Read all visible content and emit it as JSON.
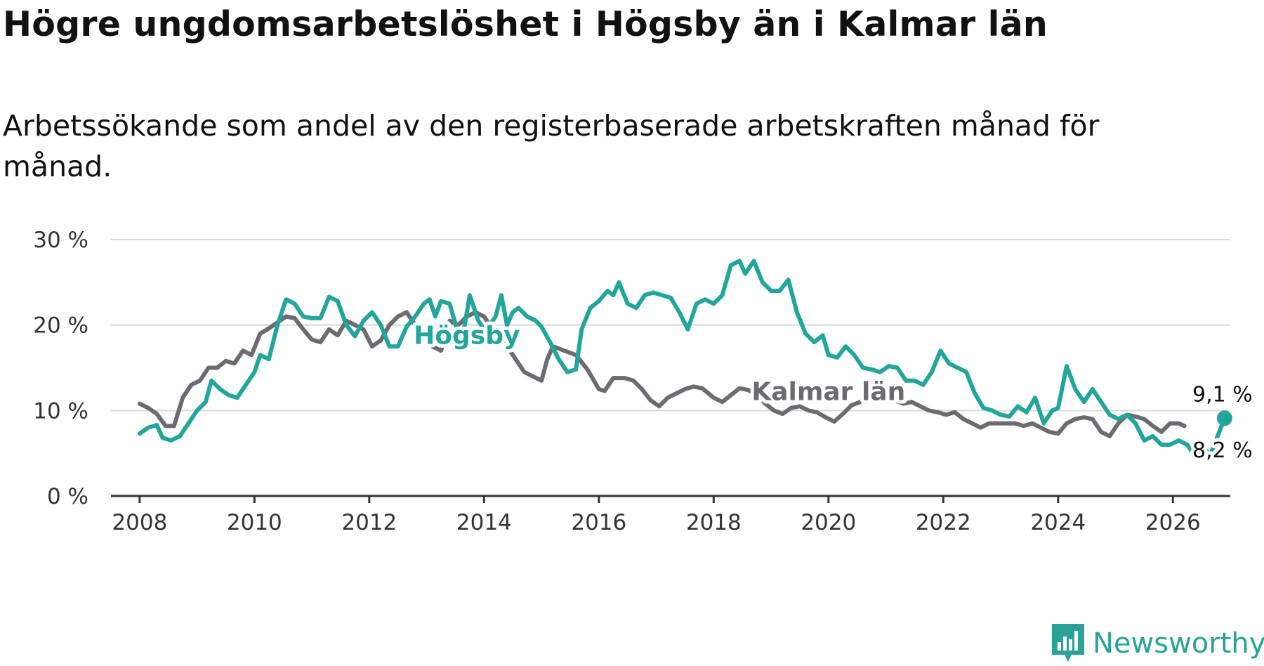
{
  "title": "Högre ungdomsarbetslöshet i Högsby än i Kalmar län",
  "subtitle": "Arbetssökande som andel av den registerbaserade arbetskraften månad för månad.",
  "brand": {
    "name": "Newsworthy",
    "icon": "bar-chart-chat-icon",
    "color": "#2aa298"
  },
  "chart_data": {
    "type": "line",
    "title": "Högre ungdomsarbetslöshet i Högsby än i Kalmar län",
    "xlabel": "",
    "ylabel": "",
    "xlim": [
      2007.5,
      2027.0
    ],
    "ylim": [
      0,
      30
    ],
    "y_ticks": [
      0,
      10,
      20,
      30
    ],
    "y_tick_labels": [
      "0 %",
      "10 %",
      "20 %",
      "30 %"
    ],
    "x_ticks": [
      2008,
      2010,
      2012,
      2014,
      2016,
      2018,
      2020,
      2022,
      2024,
      2026
    ],
    "x_tick_labels": [
      "2008",
      "2010",
      "2012",
      "2014",
      "2016",
      "2018",
      "2020",
      "2022",
      "2024",
      "2026"
    ],
    "grid": true,
    "series": [
      {
        "name": "Kalmar län",
        "color": "#6d6b72",
        "label": "Kalmar län",
        "end_label": "8,2 %",
        "points": [
          [
            2008.0,
            10.8
          ],
          [
            2008.15,
            10.3
          ],
          [
            2008.3,
            9.6
          ],
          [
            2008.45,
            8.2
          ],
          [
            2008.6,
            8.2
          ],
          [
            2008.75,
            11.5
          ],
          [
            2008.9,
            13.0
          ],
          [
            2009.05,
            13.5
          ],
          [
            2009.2,
            15.0
          ],
          [
            2009.35,
            15.0
          ],
          [
            2009.5,
            15.8
          ],
          [
            2009.65,
            15.5
          ],
          [
            2009.8,
            17.0
          ],
          [
            2009.95,
            16.5
          ],
          [
            2010.1,
            19.0
          ],
          [
            2010.25,
            19.6
          ],
          [
            2010.4,
            20.3
          ],
          [
            2010.55,
            21.0
          ],
          [
            2010.7,
            20.8
          ],
          [
            2010.85,
            19.5
          ],
          [
            2011.0,
            18.3
          ],
          [
            2011.15,
            18.0
          ],
          [
            2011.3,
            19.5
          ],
          [
            2011.45,
            18.8
          ],
          [
            2011.6,
            20.5
          ],
          [
            2011.75,
            20.0
          ],
          [
            2011.9,
            19.5
          ],
          [
            2012.05,
            17.5
          ],
          [
            2012.2,
            18.2
          ],
          [
            2012.35,
            20.0
          ],
          [
            2012.5,
            21.0
          ],
          [
            2012.65,
            21.5
          ],
          [
            2012.8,
            20.0
          ],
          [
            2012.95,
            19.5
          ],
          [
            2013.1,
            17.5
          ],
          [
            2013.25,
            17.0
          ],
          [
            2013.4,
            20.5
          ],
          [
            2013.55,
            20.0
          ],
          [
            2013.7,
            21.0
          ],
          [
            2013.85,
            21.5
          ],
          [
            2014.0,
            21.0
          ],
          [
            2014.1,
            20.0
          ],
          [
            2014.25,
            18.5
          ],
          [
            2014.4,
            17.5
          ],
          [
            2014.55,
            16.0
          ],
          [
            2014.7,
            14.5
          ],
          [
            2014.85,
            14.0
          ],
          [
            2015.0,
            13.5
          ],
          [
            2015.1,
            16.0
          ],
          [
            2015.2,
            17.5
          ],
          [
            2015.4,
            17.0
          ],
          [
            2015.6,
            16.5
          ],
          [
            2015.8,
            14.8
          ],
          [
            2016.0,
            12.5
          ],
          [
            2016.1,
            12.3
          ],
          [
            2016.25,
            13.8
          ],
          [
            2016.45,
            13.8
          ],
          [
            2016.6,
            13.5
          ],
          [
            2016.75,
            12.5
          ],
          [
            2016.9,
            11.2
          ],
          [
            2017.05,
            10.5
          ],
          [
            2017.2,
            11.5
          ],
          [
            2017.35,
            12.0
          ],
          [
            2017.5,
            12.5
          ],
          [
            2017.65,
            12.8
          ],
          [
            2017.8,
            12.6
          ],
          [
            2018.0,
            11.5
          ],
          [
            2018.15,
            11.0
          ],
          [
            2018.3,
            11.8
          ],
          [
            2018.45,
            12.6
          ],
          [
            2018.6,
            12.4
          ],
          [
            2018.75,
            11.8
          ],
          [
            2018.9,
            10.8
          ],
          [
            2019.05,
            10.0
          ],
          [
            2019.2,
            9.6
          ],
          [
            2019.35,
            10.3
          ],
          [
            2019.5,
            10.5
          ],
          [
            2019.65,
            10.0
          ],
          [
            2019.8,
            9.8
          ],
          [
            2019.95,
            9.2
          ],
          [
            2020.1,
            8.7
          ],
          [
            2020.25,
            9.6
          ],
          [
            2020.4,
            10.6
          ],
          [
            2020.55,
            11.0
          ],
          [
            2020.7,
            11.5
          ],
          [
            2020.85,
            11.2
          ],
          [
            2021.0,
            11.5
          ],
          [
            2021.15,
            11.2
          ],
          [
            2021.3,
            10.8
          ],
          [
            2021.45,
            11.0
          ],
          [
            2021.6,
            10.5
          ],
          [
            2021.75,
            10.0
          ],
          [
            2021.9,
            9.8
          ],
          [
            2022.05,
            9.5
          ],
          [
            2022.2,
            9.8
          ],
          [
            2022.35,
            9.0
          ],
          [
            2022.5,
            8.5
          ],
          [
            2022.65,
            8.0
          ],
          [
            2022.8,
            8.5
          ],
          [
            2022.95,
            8.5
          ],
          [
            2023.1,
            8.5
          ],
          [
            2023.25,
            8.5
          ],
          [
            2023.4,
            8.2
          ],
          [
            2023.55,
            8.5
          ],
          [
            2023.7,
            8.0
          ],
          [
            2023.85,
            7.5
          ],
          [
            2024.0,
            7.3
          ],
          [
            2024.15,
            8.5
          ],
          [
            2024.3,
            9.0
          ],
          [
            2024.45,
            9.2
          ],
          [
            2024.6,
            9.0
          ],
          [
            2024.75,
            7.5
          ],
          [
            2024.9,
            7.0
          ],
          [
            2025.05,
            8.5
          ],
          [
            2025.2,
            9.5
          ],
          [
            2025.35,
            9.3
          ],
          [
            2025.5,
            9.0
          ],
          [
            2025.65,
            8.2
          ],
          [
            2025.8,
            7.5
          ],
          [
            2025.95,
            8.5
          ],
          [
            2026.1,
            8.5
          ],
          [
            2026.2,
            8.2
          ]
        ]
      },
      {
        "name": "Högsby",
        "color": "#22a59a",
        "label": "Högsby",
        "end_label": "9,1 %",
        "points": [
          [
            2008.0,
            7.3
          ],
          [
            2008.15,
            8.0
          ],
          [
            2008.3,
            8.3
          ],
          [
            2008.4,
            6.8
          ],
          [
            2008.55,
            6.5
          ],
          [
            2008.7,
            7.0
          ],
          [
            2008.85,
            8.5
          ],
          [
            2009.0,
            10.0
          ],
          [
            2009.15,
            11.0
          ],
          [
            2009.25,
            13.5
          ],
          [
            2009.4,
            12.5
          ],
          [
            2009.55,
            11.8
          ],
          [
            2009.7,
            11.5
          ],
          [
            2009.85,
            13.0
          ],
          [
            2010.0,
            14.5
          ],
          [
            2010.1,
            16.5
          ],
          [
            2010.25,
            16.0
          ],
          [
            2010.4,
            20.0
          ],
          [
            2010.55,
            23.0
          ],
          [
            2010.7,
            22.5
          ],
          [
            2010.85,
            21.0
          ],
          [
            2011.0,
            20.8
          ],
          [
            2011.15,
            20.8
          ],
          [
            2011.3,
            23.3
          ],
          [
            2011.45,
            22.8
          ],
          [
            2011.6,
            20.0
          ],
          [
            2011.75,
            18.7
          ],
          [
            2011.9,
            20.5
          ],
          [
            2012.05,
            21.5
          ],
          [
            2012.2,
            20.0
          ],
          [
            2012.35,
            17.5
          ],
          [
            2012.5,
            17.5
          ],
          [
            2012.65,
            19.8
          ],
          [
            2012.8,
            21.0
          ],
          [
            2012.95,
            22.5
          ],
          [
            2013.05,
            23.0
          ],
          [
            2013.15,
            21.0
          ],
          [
            2013.25,
            22.8
          ],
          [
            2013.4,
            22.5
          ],
          [
            2013.55,
            19.0
          ],
          [
            2013.65,
            19.5
          ],
          [
            2013.75,
            23.5
          ],
          [
            2013.9,
            20.5
          ],
          [
            2014.0,
            19.5
          ],
          [
            2014.1,
            20.0
          ],
          [
            2014.2,
            21.0
          ],
          [
            2014.3,
            23.5
          ],
          [
            2014.4,
            20.0
          ],
          [
            2014.5,
            21.5
          ],
          [
            2014.6,
            22.0
          ],
          [
            2014.75,
            21.0
          ],
          [
            2014.9,
            20.5
          ],
          [
            2015.0,
            19.8
          ],
          [
            2015.15,
            18.0
          ],
          [
            2015.3,
            16.0
          ],
          [
            2015.45,
            14.5
          ],
          [
            2015.6,
            14.8
          ],
          [
            2015.7,
            19.5
          ],
          [
            2015.85,
            22.0
          ],
          [
            2016.0,
            22.8
          ],
          [
            2016.15,
            24.0
          ],
          [
            2016.25,
            23.5
          ],
          [
            2016.35,
            25.0
          ],
          [
            2016.5,
            22.5
          ],
          [
            2016.65,
            22.0
          ],
          [
            2016.8,
            23.5
          ],
          [
            2016.95,
            23.8
          ],
          [
            2017.1,
            23.5
          ],
          [
            2017.25,
            23.2
          ],
          [
            2017.4,
            21.5
          ],
          [
            2017.55,
            19.5
          ],
          [
            2017.7,
            22.5
          ],
          [
            2017.85,
            23.0
          ],
          [
            2018.0,
            22.5
          ],
          [
            2018.15,
            23.5
          ],
          [
            2018.3,
            27.0
          ],
          [
            2018.45,
            27.5
          ],
          [
            2018.55,
            26.0
          ],
          [
            2018.7,
            27.5
          ],
          [
            2018.85,
            25.0
          ],
          [
            2019.0,
            24.0
          ],
          [
            2019.15,
            24.0
          ],
          [
            2019.3,
            25.3
          ],
          [
            2019.45,
            21.5
          ],
          [
            2019.6,
            19.0
          ],
          [
            2019.75,
            18.0
          ],
          [
            2019.9,
            18.8
          ],
          [
            2020.0,
            16.5
          ],
          [
            2020.15,
            16.2
          ],
          [
            2020.3,
            17.5
          ],
          [
            2020.45,
            16.5
          ],
          [
            2020.6,
            15.0
          ],
          [
            2020.75,
            14.8
          ],
          [
            2020.9,
            14.5
          ],
          [
            2021.05,
            15.2
          ],
          [
            2021.2,
            15.0
          ],
          [
            2021.35,
            13.5
          ],
          [
            2021.5,
            13.5
          ],
          [
            2021.65,
            13.0
          ],
          [
            2021.8,
            14.5
          ],
          [
            2021.95,
            17.0
          ],
          [
            2022.1,
            15.5
          ],
          [
            2022.25,
            15.0
          ],
          [
            2022.4,
            14.5
          ],
          [
            2022.55,
            12.0
          ],
          [
            2022.7,
            10.3
          ],
          [
            2022.85,
            10.0
          ],
          [
            2023.0,
            9.5
          ],
          [
            2023.15,
            9.3
          ],
          [
            2023.3,
            10.5
          ],
          [
            2023.45,
            9.8
          ],
          [
            2023.6,
            11.5
          ],
          [
            2023.75,
            8.5
          ],
          [
            2023.9,
            10.0
          ],
          [
            2024.0,
            10.3
          ],
          [
            2024.15,
            15.2
          ],
          [
            2024.3,
            12.5
          ],
          [
            2024.45,
            11.0
          ],
          [
            2024.6,
            12.5
          ],
          [
            2024.75,
            11.0
          ],
          [
            2024.9,
            9.5
          ],
          [
            2025.05,
            9.0
          ],
          [
            2025.2,
            9.5
          ],
          [
            2025.35,
            8.5
          ],
          [
            2025.5,
            6.5
          ],
          [
            2025.65,
            7.0
          ],
          [
            2025.8,
            6.0
          ],
          [
            2025.95,
            6.0
          ],
          [
            2026.1,
            6.5
          ],
          [
            2026.25,
            6.0
          ],
          [
            2026.35,
            5.0
          ],
          [
            2026.45,
            6.5
          ],
          [
            2026.55,
            5.5
          ],
          [
            2026.65,
            4.8
          ],
          [
            2026.75,
            6.5
          ],
          [
            2026.9,
            9.1
          ]
        ]
      }
    ]
  }
}
